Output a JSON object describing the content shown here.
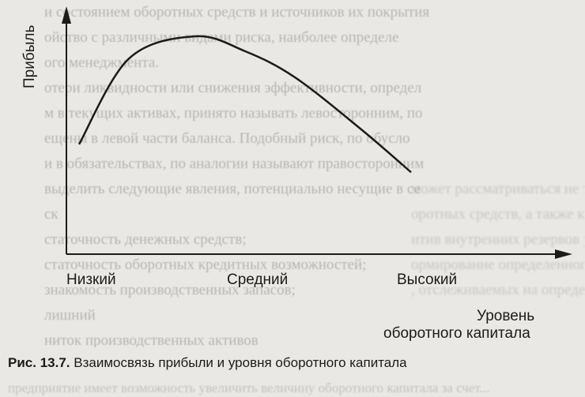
{
  "background_text": [
    "и состоянием оборотных средств и источников их покрытия",
    "ойство с различными видами риска, наиболее определе",
    "ого менеджмента.",
    "отери ликвидности или снижения эффективности, определ",
    "м в текущих активах, принято называть левосторонним, по",
    "ещены в левой части баланса. Подобный риск, по обусло",
    "и в обязательствах, по аналогии называют правосторонним",
    "выделить следующие явления, потенциально несущие в се",
    "ск",
    "статочность денежных средств;",
    "статочность оборотных кредитных возможностей;",
    "знакомость производственных запасов;",
    "лишний",
    "ниток производственных активов"
  ],
  "background_right": [
    "",
    "",
    "",
    "",
    "",
    "",
    "",
    "может рассматриваться не только как метод",
    "оротных средств, а также как способ выявления и мобилиз",
    "итив внутренних резервов увеличения эффективности пр",
    "ормирование определенного уровня оборотного капитала",
    ", отслеживаемых на определенный срок в начале..."
  ],
  "chart_data": {
    "type": "line",
    "title": "",
    "ylabel": "Прибыль",
    "xlabel_line1": "Уровень",
    "xlabel_line2": "оборотного капитала",
    "categories": [
      "Низкий",
      "Средний",
      "Высокий"
    ],
    "series": [
      {
        "x": [
          0.0,
          0.15,
          0.35,
          0.5,
          0.65,
          0.85,
          1.0
        ],
        "y": [
          0.42,
          0.88,
          1.0,
          0.92,
          0.78,
          0.5,
          0.27
        ]
      }
    ],
    "xlim": [
      0,
      1
    ],
    "ylim": [
      0,
      1
    ],
    "grid": false
  },
  "caption": {
    "label": "Рис. 13.7.",
    "text": "Взаимосвязь прибыли и уровня оборотного капитала"
  },
  "footer_text": "предприятие имеет возможность увеличить величину оборотного капитала за счет..."
}
